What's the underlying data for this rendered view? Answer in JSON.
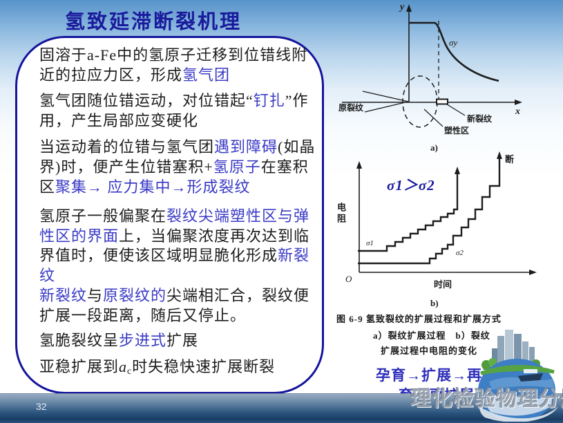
{
  "page": {
    "number": "32"
  },
  "title": "氢致延滞断裂机理",
  "box": {
    "lines": [
      {
        "segs": [
          {
            "t": "固溶于a-Fe中的氢原子迁移到位错线附",
            "s": "k"
          }
        ]
      },
      {
        "segs": [
          {
            "t": "近的拉应力区，形成",
            "s": "k"
          },
          {
            "t": "氢气团",
            "s": "b"
          }
        ]
      },
      {
        "segs": [
          {
            "t": "氢气团随位错运动，对位错起“",
            "s": "k"
          },
          {
            "t": "钉扎",
            "s": "b"
          },
          {
            "t": "”作",
            "s": "k"
          }
        ]
      },
      {
        "segs": [
          {
            "t": "用，产生局部应变硬化",
            "s": "k"
          }
        ]
      },
      {
        "segs": [
          {
            "t": "当运动着的位错与氢气团",
            "s": "k"
          },
          {
            "t": "遇到障碍",
            "s": "b"
          },
          {
            "t": "(如晶",
            "s": "k"
          }
        ]
      },
      {
        "segs": [
          {
            "t": "界)时，便产生位错塞积+",
            "s": "k"
          },
          {
            "t": "氢原子",
            "s": "b"
          },
          {
            "t": "在塞积",
            "s": "k"
          }
        ]
      },
      {
        "segs": [
          {
            "t": "区",
            "s": "k"
          },
          {
            "t": "聚集→ 应力集中→形成裂纹",
            "s": "b"
          }
        ]
      },
      {
        "segs": [
          {
            "t": "氢原子一般偏聚在",
            "s": "k"
          },
          {
            "t": "裂纹尖端塑性区与弹",
            "s": "b"
          }
        ]
      },
      {
        "segs": [
          {
            "t": "性区的界面",
            "s": "b"
          },
          {
            "t": "上，当偏聚浓度再次达到临",
            "s": "k"
          }
        ]
      },
      {
        "segs": [
          {
            "t": "界值时，便使该区域明显脆化形成",
            "s": "k"
          },
          {
            "t": "新裂",
            "s": "b"
          }
        ]
      },
      {
        "segs": [
          {
            "t": "纹",
            "s": "b"
          }
        ]
      },
      {
        "segs": [
          {
            "t": "新裂纹",
            "s": "b"
          },
          {
            "t": "与",
            "s": "k"
          },
          {
            "t": "原裂纹的",
            "s": "b"
          },
          {
            "t": "尖端相汇合，裂纹便",
            "s": "k"
          }
        ]
      },
      {
        "segs": [
          {
            "t": "扩展一段距离，随后又停止。",
            "s": "k"
          }
        ]
      },
      {
        "segs": [
          {
            "t": "氢脆裂纹呈",
            "s": "k"
          },
          {
            "t": "步进式",
            "s": "b"
          },
          {
            "t": "扩展",
            "s": "k"
          }
        ]
      },
      {
        "segs": [
          {
            "t": "亚稳扩展到",
            "s": "k"
          },
          {
            "t": "a",
            "s": "i"
          },
          {
            "t": "c",
            "s": "c"
          },
          {
            "t": "时失稳快速扩展断裂",
            "s": "k"
          }
        ]
      }
    ]
  },
  "fig_a": {
    "axis_y": "y",
    "axis_x": "x",
    "sigma_y": "σy",
    "label_original_crack": "原裂纹",
    "label_new_crack": "新裂纹",
    "label_plastic_zone": "塑性区",
    "caption": "a)"
  },
  "fig_b": {
    "y_axis_label": "电阻",
    "x_axis_label": "时间",
    "origin": "O",
    "sigma1": "σ1",
    "sigma2": "σ2",
    "fracture": "断",
    "inequality": "σ1＞σ2",
    "caption": "b)"
  },
  "figure_caption": {
    "line1": "图 6-9  氢致裂纹的扩展过程和扩展方式",
    "line2": "a）裂纹扩展过程　b）裂纹",
    "line3": "扩展过程中电阻的变化"
  },
  "process": {
    "line1": "孕育→扩展→再孕",
    "line2": "育→再扩展"
  },
  "watermark": "理化检验物理分册",
  "colors": {
    "highlight_blue": "#3a3ac6",
    "title_blue": "#1a1a9c",
    "box_border": "#14149c",
    "band_dark": "#1a3d63"
  }
}
